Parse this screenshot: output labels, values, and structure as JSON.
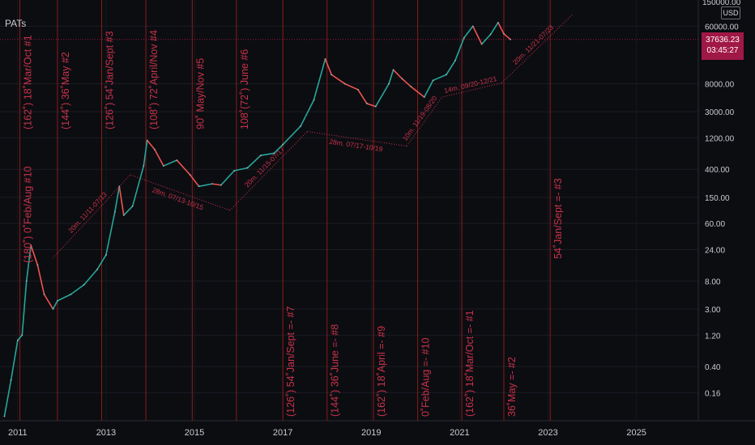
{
  "header": {
    "title": "PATs",
    "currency": "USD",
    "top_tick": "150000.00"
  },
  "price_badge": {
    "price": "37636.23",
    "countdown": "03:45:27",
    "color": "#a01845"
  },
  "colors": {
    "background": "#0c0d11",
    "cycle_line": "#8b1a1a",
    "annotation": "#c8324a",
    "trend_dotted": "#c8324a",
    "candle_up": "#26a69a",
    "candle_down": "#ef5350"
  },
  "chart_data": {
    "type": "line",
    "yscale": "log",
    "x_ticks": [
      "2011",
      "2013",
      "2015",
      "2017",
      "2019",
      "2021",
      "2023",
      "2025"
    ],
    "y_ticks": [
      "60000.00",
      "8000.00",
      "3000.00",
      "1200.00",
      "400.00",
      "150.00",
      "60.00",
      "24.00",
      "8.00",
      "3.00",
      "1.20",
      "0.40",
      "0.16"
    ],
    "xlim": [
      2010.6,
      2026.4
    ],
    "ylim": [
      0.06,
      150000
    ],
    "series": [
      {
        "values": [
          {
            "x": 2010.7,
            "y": 0.07
          },
          {
            "x": 2010.85,
            "y": 0.25
          },
          {
            "x": 2011.0,
            "y": 1.0
          },
          {
            "x": 2011.1,
            "y": 1.2
          },
          {
            "x": 2011.2,
            "y": 8
          },
          {
            "x": 2011.3,
            "y": 28
          },
          {
            "x": 2011.45,
            "y": 14
          },
          {
            "x": 2011.6,
            "y": 5
          },
          {
            "x": 2011.8,
            "y": 3
          },
          {
            "x": 2011.9,
            "y": 4
          },
          {
            "x": 2012.2,
            "y": 5
          },
          {
            "x": 2012.5,
            "y": 7
          },
          {
            "x": 2012.8,
            "y": 12
          },
          {
            "x": 2013.0,
            "y": 20
          },
          {
            "x": 2013.2,
            "y": 90
          },
          {
            "x": 2013.3,
            "y": 220
          },
          {
            "x": 2013.4,
            "y": 80
          },
          {
            "x": 2013.6,
            "y": 110
          },
          {
            "x": 2013.85,
            "y": 450
          },
          {
            "x": 2013.93,
            "y": 1100
          },
          {
            "x": 2014.1,
            "y": 800
          },
          {
            "x": 2014.3,
            "y": 450
          },
          {
            "x": 2014.6,
            "y": 550
          },
          {
            "x": 2014.9,
            "y": 330
          },
          {
            "x": 2015.1,
            "y": 220
          },
          {
            "x": 2015.4,
            "y": 240
          },
          {
            "x": 2015.6,
            "y": 230
          },
          {
            "x": 2015.9,
            "y": 380
          },
          {
            "x": 2016.2,
            "y": 420
          },
          {
            "x": 2016.5,
            "y": 650
          },
          {
            "x": 2016.8,
            "y": 700
          },
          {
            "x": 2017.0,
            "y": 950
          },
          {
            "x": 2017.4,
            "y": 1800
          },
          {
            "x": 2017.7,
            "y": 4500
          },
          {
            "x": 2017.96,
            "y": 19000
          },
          {
            "x": 2018.1,
            "y": 11000
          },
          {
            "x": 2018.4,
            "y": 8000
          },
          {
            "x": 2018.7,
            "y": 6500
          },
          {
            "x": 2018.9,
            "y": 4000
          },
          {
            "x": 2019.1,
            "y": 3600
          },
          {
            "x": 2019.4,
            "y": 8000
          },
          {
            "x": 2019.5,
            "y": 13000
          },
          {
            "x": 2019.7,
            "y": 9500
          },
          {
            "x": 2019.9,
            "y": 7200
          },
          {
            "x": 2020.2,
            "y": 5000
          },
          {
            "x": 2020.4,
            "y": 9000
          },
          {
            "x": 2020.7,
            "y": 11000
          },
          {
            "x": 2020.9,
            "y": 18000
          },
          {
            "x": 2021.1,
            "y": 40000
          },
          {
            "x": 2021.3,
            "y": 60000
          },
          {
            "x": 2021.5,
            "y": 32000
          },
          {
            "x": 2021.7,
            "y": 45000
          },
          {
            "x": 2021.87,
            "y": 68000
          },
          {
            "x": 2022.0,
            "y": 46000
          },
          {
            "x": 2022.15,
            "y": 37636
          }
        ]
      }
    ],
    "cycle_lines_x": [
      2011.05,
      2011.9,
      2012.9,
      2013.9,
      2014.95,
      2015.95,
      2017.0,
      2018.0,
      2019.05,
      2020.05,
      2021.05,
      2022.0,
      2023.05
    ],
    "top_labels": [
      {
        "x": 2011.05,
        "text": "(162˚) 18˚Mar/Oct #1"
      },
      {
        "x": 2011.9,
        "text": "(144˚) 36˚May #2"
      },
      {
        "x": 2012.9,
        "text": "(126˚) 54˚Jan/Sept #3"
      },
      {
        "x": 2013.9,
        "text": "(108˚) 72˚April/Nov #4"
      },
      {
        "x": 2014.95,
        "text": "90˚ May/Nov #5"
      },
      {
        "x": 2015.95,
        "text": "108˚(72˚) June #6"
      }
    ],
    "mid_labels": [
      {
        "x": 2011.05,
        "text": "(180˚) 0˚Feb/Aug #10"
      },
      {
        "x": 2023.05,
        "text": "54˚Jan/Sept =- #3"
      }
    ],
    "bottom_labels": [
      {
        "x": 2017.0,
        "text": "(126˚) 54˚Jan/Sept =- #7"
      },
      {
        "x": 2018.0,
        "text": "(144˚) 36˚June =- #8"
      },
      {
        "x": 2019.05,
        "text": "(162˚) 18˚April =- #9"
      },
      {
        "x": 2020.05,
        "text": "0˚Feb/Aug =- #10"
      },
      {
        "x": 2021.05,
        "text": "(162˚) 18˚Mar/Oct =- #1"
      },
      {
        "x": 2022.0,
        "text": "36˚May =- #2"
      }
    ],
    "trend_segments": [
      {
        "label": "20m. 11/11-07/13",
        "from": {
          "x": 2011.8,
          "y": 18
        },
        "to": {
          "x": 2013.55,
          "y": 330
        }
      },
      {
        "label": "28m. 07/13-10/15",
        "from": {
          "x": 2013.55,
          "y": 330
        },
        "to": {
          "x": 2015.8,
          "y": 95
        }
      },
      {
        "label": "20m. 11/15-07/17",
        "from": {
          "x": 2015.8,
          "y": 95
        },
        "to": {
          "x": 2017.55,
          "y": 1500
        }
      },
      {
        "label": "28m. 07/17-10/19",
        "from": {
          "x": 2017.55,
          "y": 1500
        },
        "to": {
          "x": 2019.8,
          "y": 900
        }
      },
      {
        "label": "10m. 11/19-08/20",
        "from": {
          "x": 2019.8,
          "y": 900
        },
        "to": {
          "x": 2020.6,
          "y": 5000
        }
      },
      {
        "label": "14m. 09/20-12/21",
        "from": {
          "x": 2020.6,
          "y": 5000
        },
        "to": {
          "x": 2021.95,
          "y": 8200
        }
      },
      {
        "label": "20m. 11/21-07/23",
        "from": {
          "x": 2021.95,
          "y": 8200
        },
        "to": {
          "x": 2023.55,
          "y": 90000
        }
      }
    ],
    "current_price": 37636.23
  }
}
